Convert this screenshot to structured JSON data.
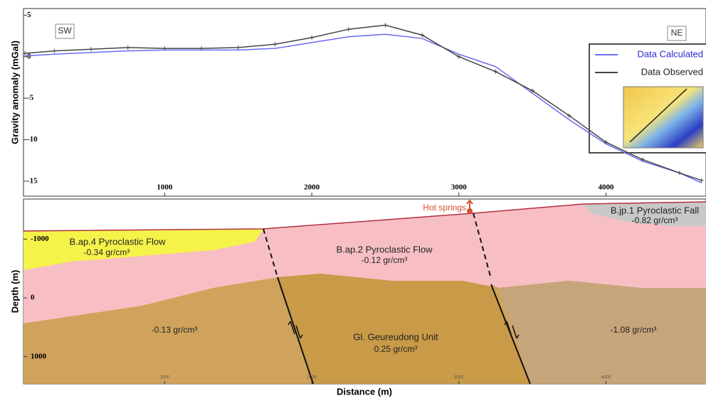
{
  "chart_data": {
    "type": "line",
    "ylabel": "Gravity anomaly (mGal)",
    "x": [
      50,
      250,
      500,
      750,
      1000,
      1250,
      1500,
      1750,
      2000,
      2250,
      2500,
      2750,
      3000,
      3250,
      3500,
      3750,
      4000,
      4250,
      4500,
      4650
    ],
    "series": [
      {
        "name": "Data Calculated",
        "color": "#6b6bf2",
        "values": [
          0.1,
          0.3,
          0.5,
          0.7,
          0.8,
          0.8,
          0.8,
          1.0,
          1.7,
          2.4,
          2.7,
          2.2,
          0.3,
          -1.2,
          -4.4,
          -7.6,
          -10.5,
          -12.6,
          -14.0,
          -15.2
        ]
      },
      {
        "name": "Data Observed",
        "color": "#444444",
        "values": [
          0.4,
          0.7,
          0.9,
          1.1,
          1.0,
          1.0,
          1.1,
          1.5,
          2.3,
          3.3,
          3.8,
          2.6,
          0.0,
          -1.8,
          -4.1,
          -7.1,
          -10.3,
          -12.4,
          -14.0,
          -14.9
        ]
      }
    ],
    "xlim": [
      40,
      4680
    ],
    "ylim": [
      -16.8,
      5.8
    ],
    "xticks": [
      1000,
      2000,
      3000,
      4000
    ],
    "yticks": [
      5,
      0,
      -5,
      -10,
      -15
    ],
    "annotations": [
      "SW",
      "NE"
    ]
  },
  "cross_section": {
    "ylabel": "Depth (m)",
    "xlabel": "Distance (m)",
    "ylim": [
      -1683,
      1463
    ],
    "yticks": [
      -1000,
      0,
      1000
    ],
    "xticks": [
      1000,
      2000,
      3000,
      4000
    ],
    "hot_springs": "Hot springs",
    "units": [
      {
        "name": "B.ap.4 Pyroclastic Flow",
        "density": "-0.34 gr/cm³"
      },
      {
        "name": "B.ap.2 Pyroclastic Flow",
        "density": "-0.12 gr/cm³"
      },
      {
        "name": "B.jp.1 Pyroclastic Fall",
        "density": "-0.82 gr/cm³"
      },
      {
        "name": "Gl. Geureudong Unit",
        "density": "0.25 gr/cm³"
      }
    ],
    "densities": [
      "-0.13 gr/cm³",
      "-1.08 gr/cm³"
    ]
  }
}
